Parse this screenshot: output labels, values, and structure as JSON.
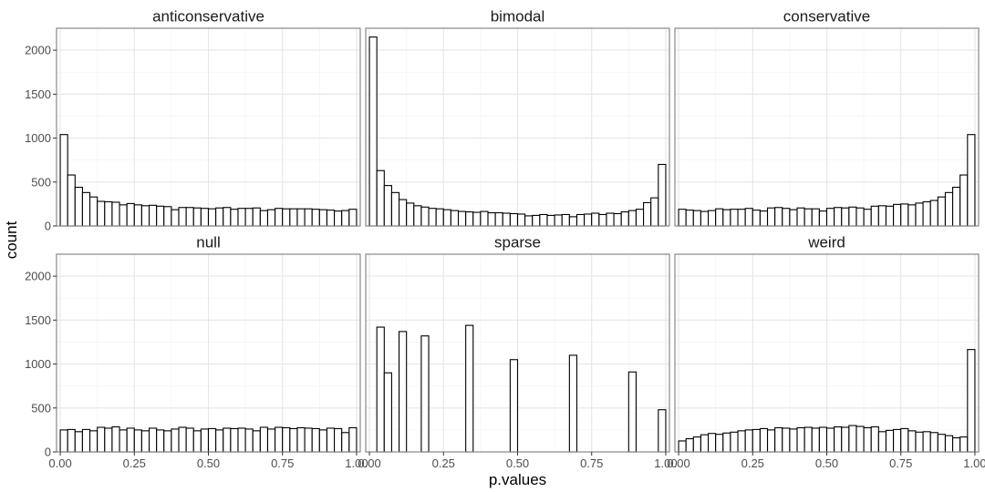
{
  "chart_data": {
    "type": "histogram",
    "xlabel": "p.values",
    "ylabel": "count",
    "xlim": [
      -0.0125,
      1.0125
    ],
    "ylim": [
      0,
      2250
    ],
    "x_ticks": [
      0,
      0.25,
      0.5,
      0.75,
      1
    ],
    "x_tick_labels": [
      "0.00",
      "0.25",
      "0.50",
      "0.75",
      "1.00"
    ],
    "y_ticks": [
      0,
      500,
      1000,
      1500,
      2000
    ],
    "y_tick_labels": [
      "0",
      "500",
      "1000",
      "1500",
      "2000"
    ],
    "grid": true,
    "bins": 40,
    "bin_width": 0.025,
    "first_bin_center": 0.0125,
    "colors": {
      "bar_fill": "#ffffff",
      "bar_stroke": "#000000",
      "panel_border": "#7f7f7f",
      "grid_major": "#e6e6e6",
      "grid_minor": "#f2f2f2"
    },
    "panels": [
      {
        "name": "anticonservative",
        "values": [
          1040,
          580,
          440,
          380,
          330,
          280,
          275,
          270,
          240,
          255,
          240,
          230,
          235,
          225,
          220,
          185,
          210,
          210,
          205,
          200,
          195,
          205,
          210,
          190,
          200,
          200,
          205,
          175,
          185,
          200,
          195,
          195,
          195,
          195,
          190,
          185,
          180,
          170,
          175,
          190
        ]
      },
      {
        "name": "bimodal",
        "values": [
          2150,
          630,
          460,
          380,
          300,
          260,
          230,
          215,
          200,
          195,
          185,
          175,
          165,
          160,
          155,
          165,
          150,
          150,
          145,
          140,
          135,
          115,
          120,
          130,
          120,
          125,
          130,
          105,
          130,
          135,
          145,
          130,
          145,
          140,
          160,
          175,
          190,
          265,
          320,
          700
        ]
      },
      {
        "name": "conservative",
        "values": [
          190,
          180,
          175,
          165,
          175,
          195,
          185,
          190,
          190,
          200,
          180,
          170,
          205,
          210,
          200,
          185,
          205,
          195,
          195,
          170,
          200,
          210,
          205,
          215,
          205,
          190,
          225,
          230,
          225,
          245,
          250,
          240,
          260,
          275,
          290,
          330,
          380,
          440,
          580,
          1040
        ]
      },
      {
        "name": "null",
        "values": [
          250,
          255,
          230,
          255,
          240,
          280,
          270,
          285,
          250,
          270,
          250,
          240,
          270,
          250,
          240,
          260,
          280,
          270,
          240,
          260,
          265,
          250,
          270,
          265,
          270,
          260,
          240,
          280,
          260,
          280,
          275,
          265,
          275,
          270,
          265,
          250,
          270,
          265,
          220,
          275
        ]
      },
      {
        "name": "sparse",
        "values": [
          0,
          1420,
          900,
          0,
          1370,
          0,
          0,
          1320,
          0,
          0,
          0,
          0,
          0,
          1440,
          0,
          0,
          0,
          0,
          0,
          1050,
          0,
          0,
          0,
          0,
          0,
          0,
          0,
          1100,
          0,
          0,
          0,
          0,
          0,
          0,
          0,
          910,
          0,
          0,
          0,
          480
        ]
      },
      {
        "name": "weird",
        "values": [
          125,
          150,
          170,
          195,
          210,
          200,
          215,
          225,
          240,
          250,
          255,
          265,
          250,
          275,
          270,
          260,
          275,
          280,
          270,
          280,
          270,
          285,
          280,
          300,
          290,
          275,
          285,
          230,
          245,
          255,
          265,
          240,
          225,
          230,
          220,
          200,
          185,
          160,
          170,
          1165
        ]
      }
    ]
  }
}
